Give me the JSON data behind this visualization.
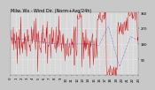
{
  "bg_color": "#c8c8c8",
  "plot_bg_color": "#d8d8d8",
  "red_color": "#cc0000",
  "blue_color": "#0000cc",
  "ylim": [
    0,
    360
  ],
  "yticks": [
    90,
    180,
    270,
    360
  ],
  "num_points": 288,
  "grid_color": "#ffffff",
  "title_fontsize": 3.5,
  "tick_fontsize": 2.8,
  "num_xticks": 24
}
